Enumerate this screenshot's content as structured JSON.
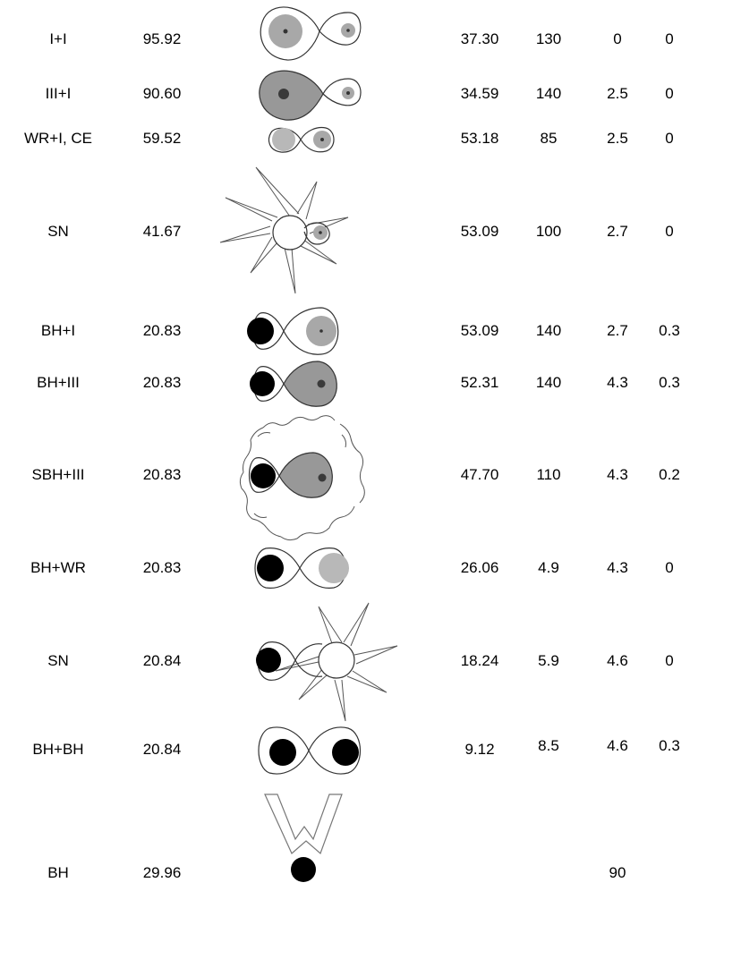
{
  "rows": [
    {
      "stage": "I+I",
      "m1": "95.92",
      "a": "37.30",
      "p": "130",
      "v": "0",
      "e": "0",
      "picture": "two-stars-detached-icon"
    },
    {
      "stage": "III+I",
      "m1": "90.60",
      "a": "34.59",
      "p": "140",
      "v": "2.5",
      "e": "0",
      "picture": "roche-lobe-overflow-icon"
    },
    {
      "stage": "WR+I, CE",
      "m1": "59.52",
      "a": "53.18",
      "p": "85",
      "v": "2.5",
      "e": "0",
      "picture": "common-envelope-icon"
    },
    {
      "stage": "SN",
      "m1": "41.67",
      "a": "53.09",
      "p": "100",
      "v": "2.7",
      "e": "0",
      "picture": "supernova-icon"
    },
    {
      "stage": "BH+I",
      "m1": "20.83",
      "a": "53.09",
      "p": "140",
      "v": "2.7",
      "e": "0.3",
      "picture": "black-hole-plus-star-icon"
    },
    {
      "stage": "BH+III",
      "m1": "20.83",
      "a": "52.31",
      "p": "140",
      "v": "4.3",
      "e": "0.3",
      "picture": "black-hole-accretion-icon"
    },
    {
      "stage": "SBH+III",
      "m1": "20.83",
      "a": "47.70",
      "p": "110",
      "v": "4.3",
      "e": "0.2",
      "picture": "super-eddington-wind-icon"
    },
    {
      "stage": "BH+WR",
      "m1": "20.83",
      "a": "26.06",
      "p": "4.9",
      "v": "4.3",
      "e": "0",
      "picture": "black-hole-wolf-rayet-icon"
    },
    {
      "stage": "SN",
      "m1": "20.84",
      "a": "18.24",
      "p": "5.9",
      "v": "4.6",
      "e": "0",
      "picture": "second-supernova-icon"
    },
    {
      "stage": "BH+BH",
      "m1": "20.84",
      "a": "9.12",
      "p": "8.5",
      "v": "4.6",
      "e": "0.3",
      "picture": "binary-black-hole-icon"
    },
    {
      "stage": "BH",
      "m1": "29.96",
      "a": "",
      "p": "",
      "v": "90",
      "e": "",
      "picture": "merger-gravitational-waves-icon"
    }
  ],
  "colors": {
    "background": "#ffffff",
    "text": "#000000",
    "star_light": "#b8b8b8",
    "star_mid": "#989898",
    "core": "#3a3a3a",
    "black_hole": "#000000",
    "outline": "#333333"
  }
}
